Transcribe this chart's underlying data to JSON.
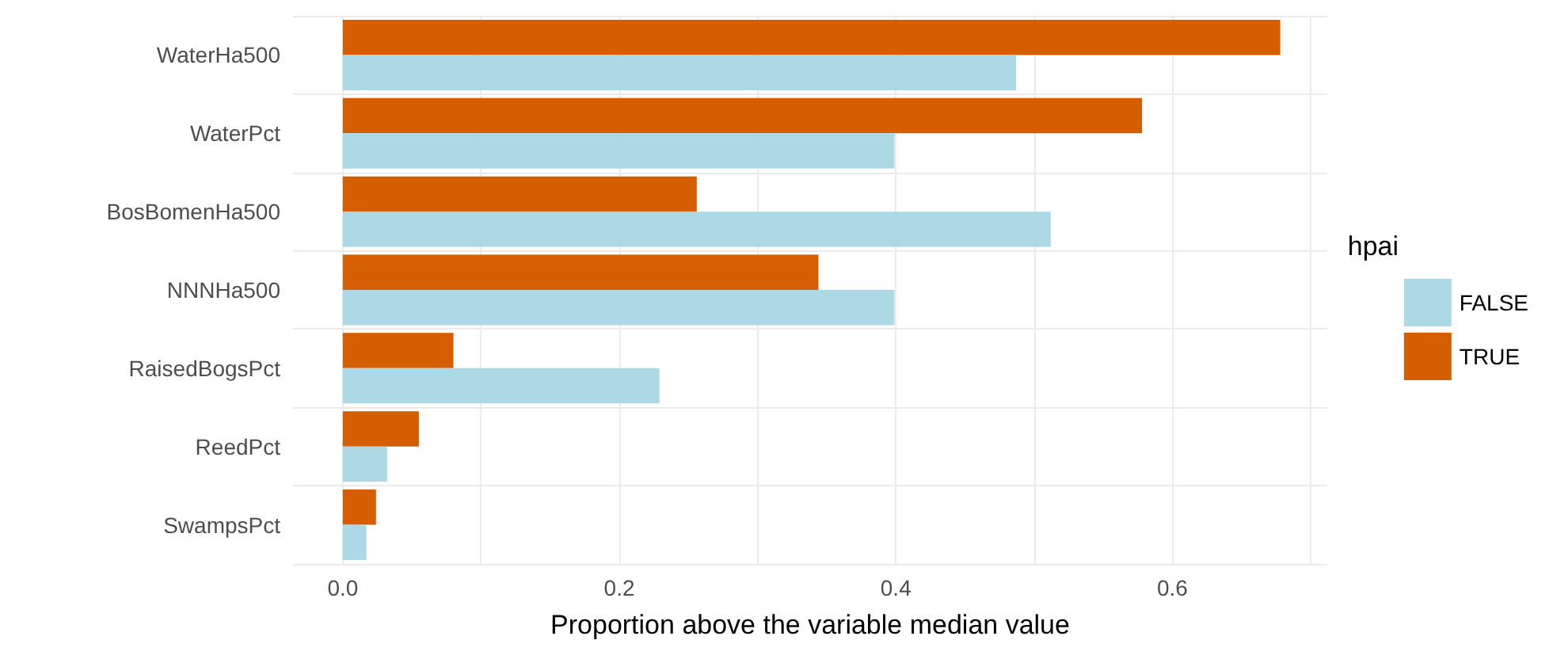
{
  "chart_data": {
    "type": "bar",
    "orientation": "horizontal",
    "xlabel": "Proportion above the variable median value",
    "legend_title": "hpai",
    "legend": "right",
    "grid": true,
    "categories": [
      "WaterHa500",
      "WaterPct",
      "BosBomenHa500",
      "NNNHa500",
      "RaisedBogsPct",
      "ReedPct",
      "SwampsPct"
    ],
    "series": [
      {
        "name": "FALSE",
        "color": "#add8e6",
        "values": [
          0.487,
          0.399,
          0.512,
          0.399,
          0.229,
          0.032,
          0.017
        ]
      },
      {
        "name": "TRUE",
        "color": "#d55e00",
        "values": [
          0.678,
          0.578,
          0.256,
          0.344,
          0.08,
          0.055,
          0.024
        ]
      }
    ],
    "xlim": [
      -0.036,
      0.712
    ],
    "xticks": [
      {
        "value": 0,
        "label": "0.0"
      },
      {
        "value": 0.1,
        "label": null
      },
      0.2,
      {
        "value": 0.3,
        "label": null
      },
      0.4,
      {
        "value": 0.5,
        "label": null
      },
      0.6,
      {
        "value": 0.7,
        "label": null
      }
    ]
  }
}
